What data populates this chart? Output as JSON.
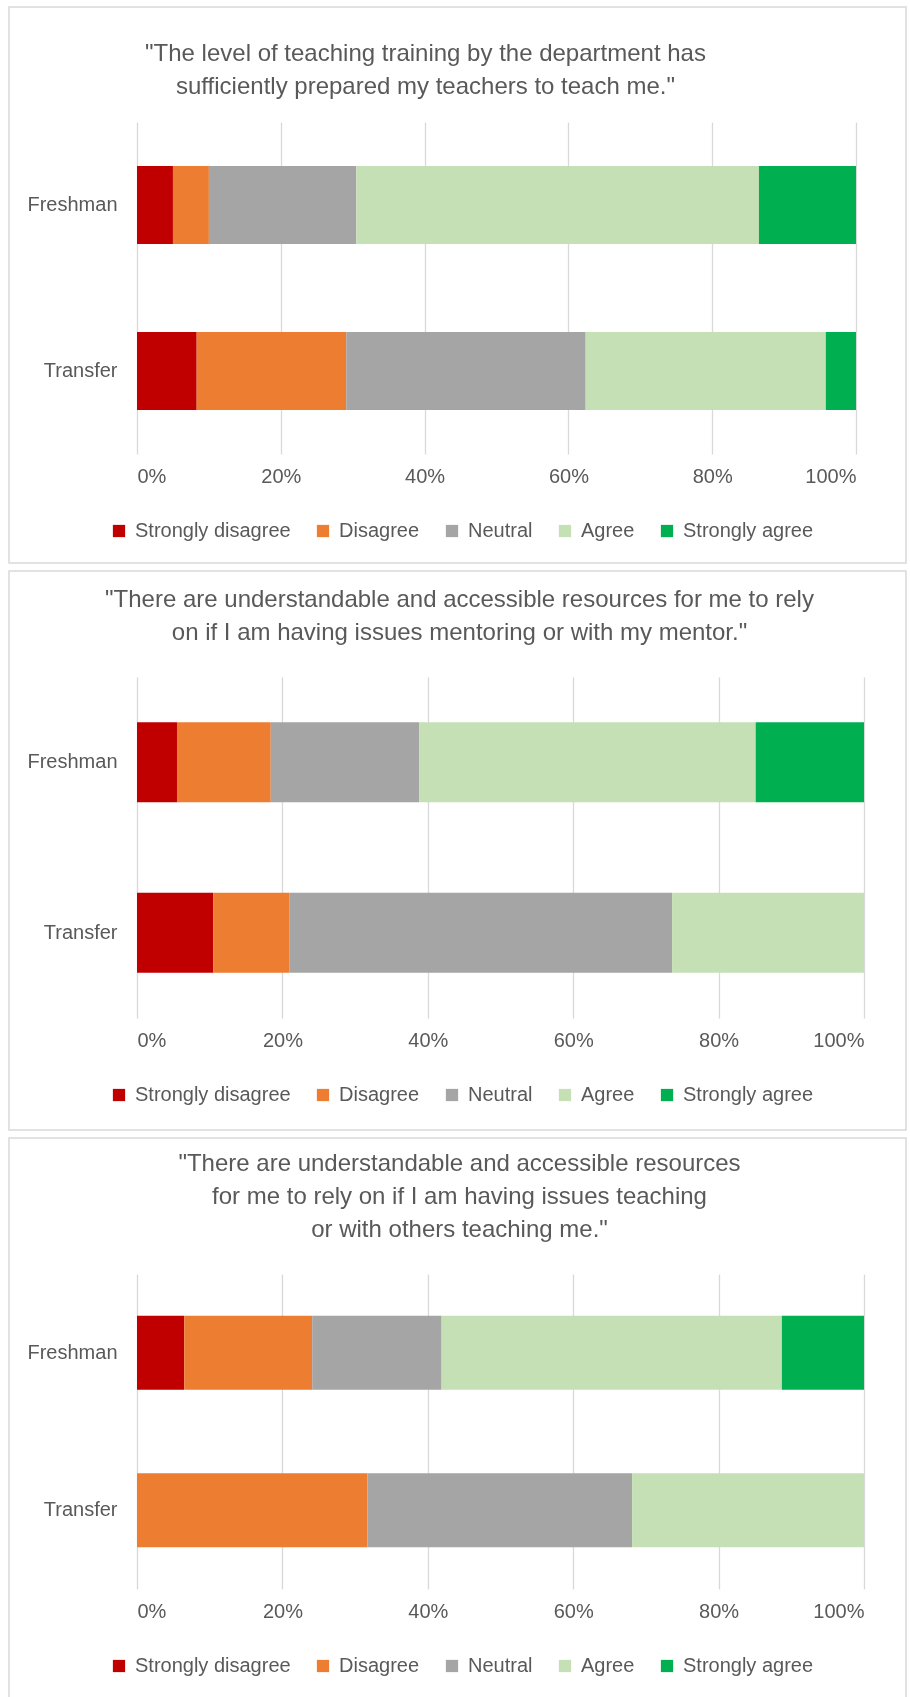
{
  "chart_data": [
    {
      "type": "bar",
      "orientation": "horizontal",
      "stacked": true,
      "title": "\"The level of teaching training by the department has\nsufficiently prepared my teachers to teach me.\"",
      "categories": [
        "Freshman",
        "Transfer"
      ],
      "series": [
        {
          "name": "Strongly disagree",
          "color": "#c00000",
          "values": [
            5,
            8.3
          ]
        },
        {
          "name": "Disagree",
          "color": "#ed7d31",
          "values": [
            5,
            20.8
          ]
        },
        {
          "name": "Neutral",
          "color": "#a5a5a5",
          "values": [
            20.5,
            33.3
          ]
        },
        {
          "name": "Agree",
          "color": "#c5e0b4",
          "values": [
            56,
            33.4
          ]
        },
        {
          "name": "Strongly agree",
          "color": "#00b050",
          "values": [
            13.5,
            4.2
          ]
        }
      ],
      "xlim": [
        0,
        100
      ],
      "xticks": [
        {
          "value": 0,
          "label": "0%"
        },
        {
          "value": 20,
          "label": "20%"
        },
        {
          "value": 40,
          "label": "40%"
        },
        {
          "value": 60,
          "label": "60%"
        },
        {
          "value": 80,
          "label": "80%"
        },
        {
          "value": 100,
          "label": "100%"
        }
      ],
      "grid": "x",
      "legend": "bottom"
    },
    {
      "type": "bar",
      "orientation": "horizontal",
      "stacked": true,
      "title": "\"There are understandable and accessible resources for me to rely\non if I am having issues mentoring or with my mentor.\"",
      "categories": [
        "Freshman",
        "Transfer"
      ],
      "series": [
        {
          "name": "Strongly disagree",
          "color": "#c00000",
          "values": [
            5.5,
            10.5
          ]
        },
        {
          "name": "Disagree",
          "color": "#ed7d31",
          "values": [
            12.9,
            10.5
          ]
        },
        {
          "name": "Neutral",
          "color": "#a5a5a5",
          "values": [
            20.4,
            52.6
          ]
        },
        {
          "name": "Agree",
          "color": "#c5e0b4",
          "values": [
            46.3,
            26.4
          ]
        },
        {
          "name": "Strongly agree",
          "color": "#00b050",
          "values": [
            14.9,
            null
          ]
        }
      ],
      "xlim": [
        0,
        100
      ],
      "xticks": [
        {
          "value": 0,
          "label": "0%"
        },
        {
          "value": 20,
          "label": "20%"
        },
        {
          "value": 40,
          "label": "40%"
        },
        {
          "value": 60,
          "label": "60%"
        },
        {
          "value": 80,
          "label": "80%"
        },
        {
          "value": 100,
          "label": "100%"
        }
      ],
      "grid": "x",
      "legend": "bottom"
    },
    {
      "type": "bar",
      "orientation": "horizontal",
      "stacked": true,
      "title": "\"There are understandable and accessible resources\nfor me to rely on if I am having issues teaching\nor with others teaching me.\"",
      "categories": [
        "Freshman",
        "Transfer"
      ],
      "series": [
        {
          "name": "Strongly disagree",
          "color": "#c00000",
          "values": [
            6.5,
            null
          ]
        },
        {
          "name": "Disagree",
          "color": "#ed7d31",
          "values": [
            17.6,
            31.7
          ]
        },
        {
          "name": "Neutral",
          "color": "#a5a5a5",
          "values": [
            17.8,
            36.4
          ]
        },
        {
          "name": "Agree",
          "color": "#c5e0b4",
          "values": [
            46.8,
            31.9
          ]
        },
        {
          "name": "Strongly agree",
          "color": "#00b050",
          "values": [
            11.3,
            null
          ]
        }
      ],
      "xlim": [
        0,
        100
      ],
      "xticks": [
        {
          "value": 0,
          "label": "0%"
        },
        {
          "value": 20,
          "label": "20%"
        },
        {
          "value": 40,
          "label": "40%"
        },
        {
          "value": 60,
          "label": "60%"
        },
        {
          "value": 80,
          "label": "80%"
        },
        {
          "value": 100,
          "label": "100%"
        }
      ],
      "grid": "x",
      "legend": "bottom"
    }
  ]
}
